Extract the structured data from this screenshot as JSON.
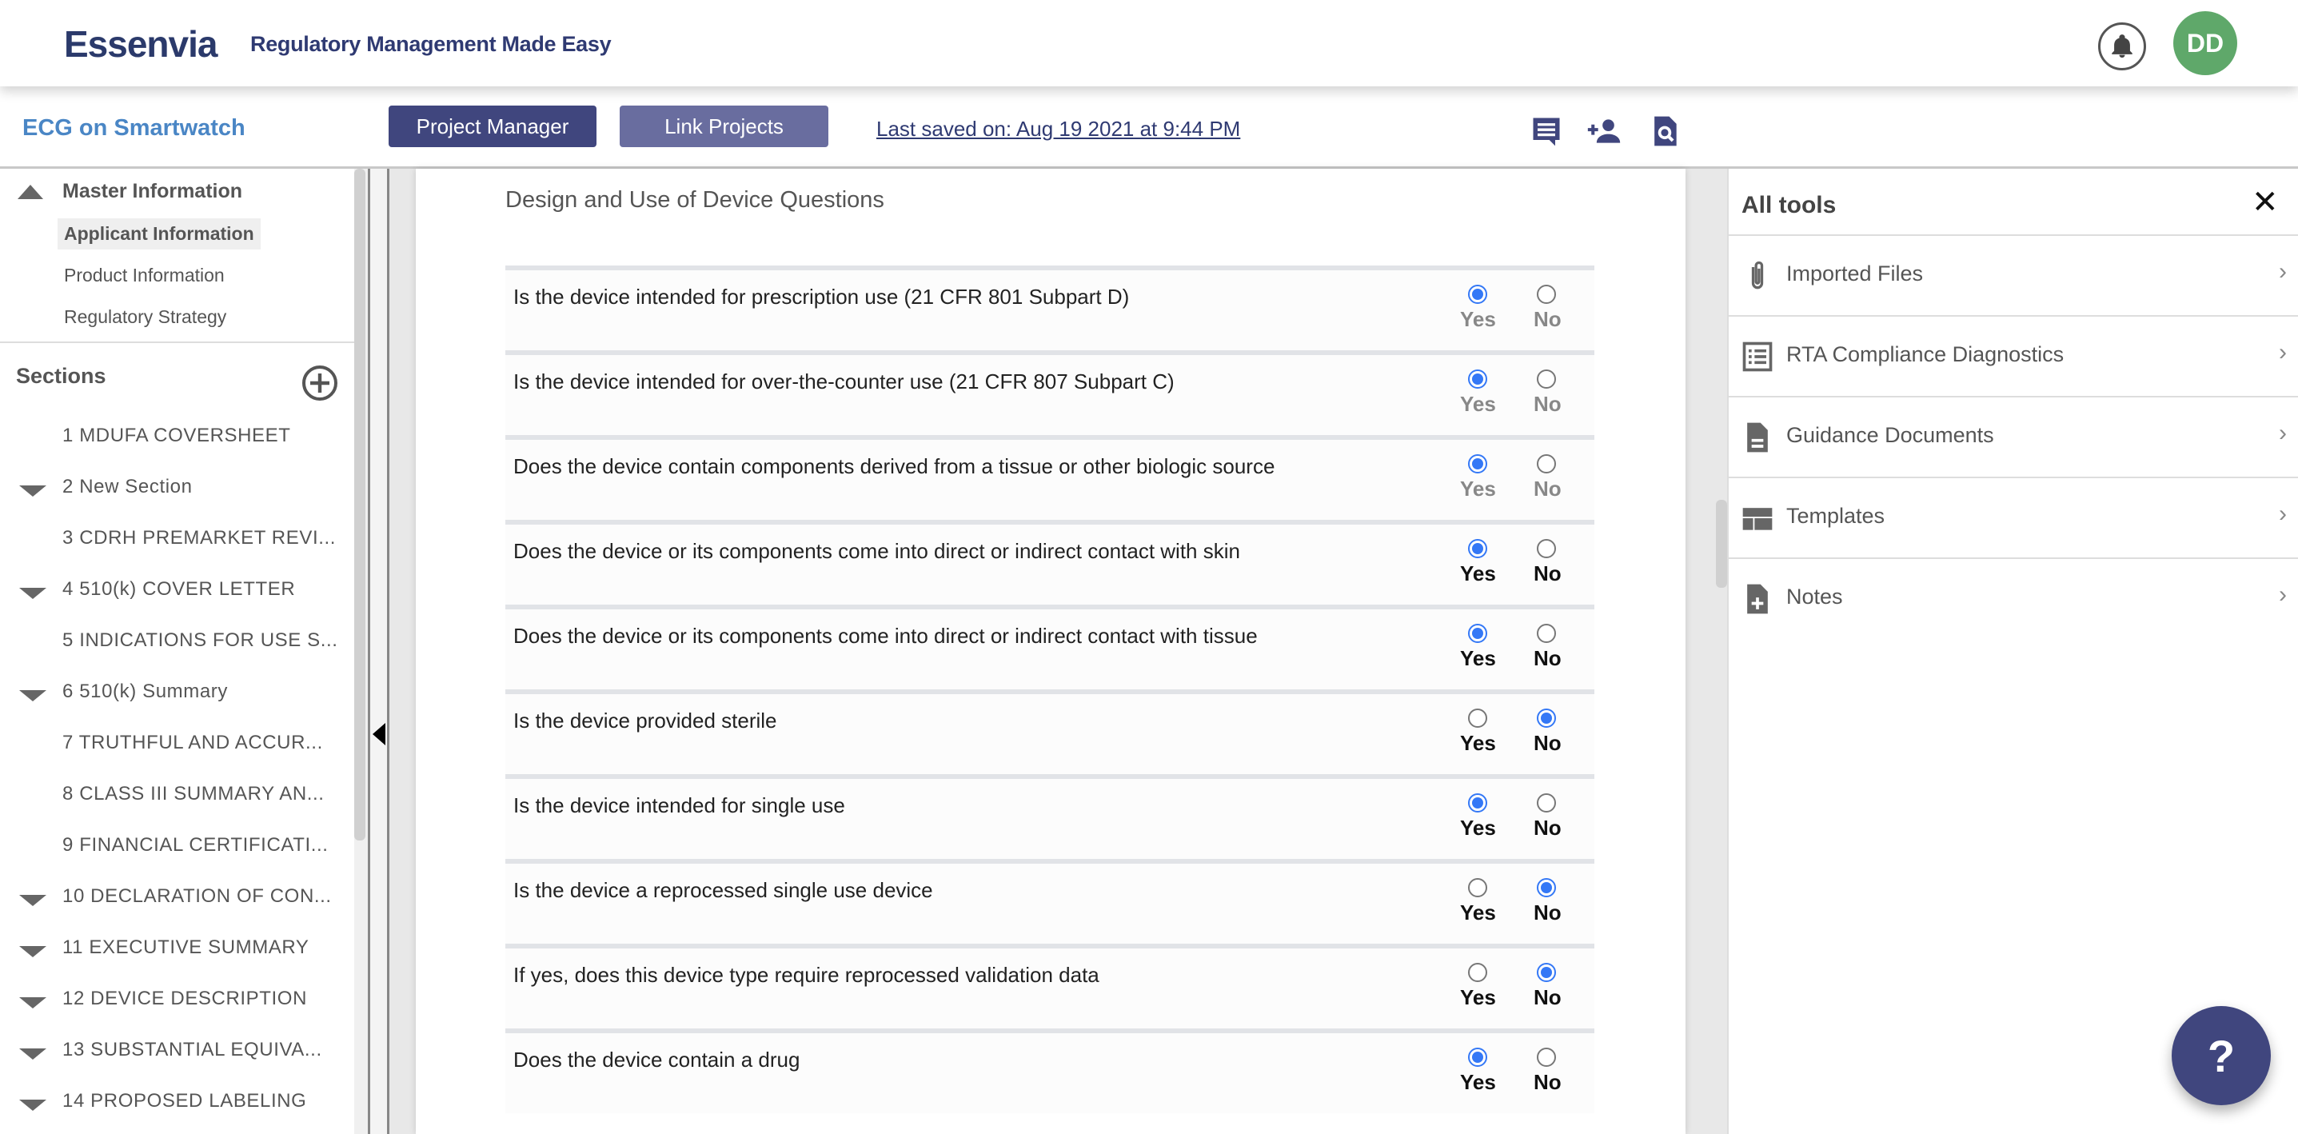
{
  "header": {
    "logo": "Essenvia",
    "tagline": "Regulatory Management Made Easy",
    "avatar_initials": "DD",
    "avatar_color": "#5fa86a"
  },
  "subbar": {
    "project_title": "ECG on Smartwatch",
    "project_manager_label": "Project Manager",
    "link_projects_label": "Link Projects",
    "last_saved": "Last saved on: Aug 19 2021 at 9:44 PM",
    "icons": [
      "comment-icon",
      "add-user-icon",
      "search-document-icon"
    ]
  },
  "sidebar": {
    "master_title": "Master Information",
    "master_items": [
      {
        "label": "Applicant Information",
        "active": true
      },
      {
        "label": "Product Information"
      },
      {
        "label": "Regulatory Strategy"
      }
    ],
    "sections_title": "Sections",
    "sections": [
      {
        "label": "1 MDUFA COVERSHEET",
        "expandable": false
      },
      {
        "label": "2 New Section",
        "expandable": true
      },
      {
        "label": "3 CDRH PREMARKET REVI...",
        "expandable": false
      },
      {
        "label": "4 510(k) COVER LETTER",
        "expandable": true
      },
      {
        "label": "5 INDICATIONS FOR USE S...",
        "expandable": false
      },
      {
        "label": "6 510(k) Summary",
        "expandable": true
      },
      {
        "label": "7 TRUTHFUL AND ACCUR...",
        "expandable": false
      },
      {
        "label": "8 CLASS III SUMMARY AN...",
        "expandable": false
      },
      {
        "label": "9 FINANCIAL CERTIFICATI...",
        "expandable": false
      },
      {
        "label": "10 DECLARATION OF CON...",
        "expandable": true
      },
      {
        "label": "11 EXECUTIVE SUMMARY",
        "expandable": true
      },
      {
        "label": "12 DEVICE DESCRIPTION",
        "expandable": true
      },
      {
        "label": "13 SUBSTANTIAL EQUIVA...",
        "expandable": true
      },
      {
        "label": "14 PROPOSED LABELING",
        "expandable": true
      }
    ]
  },
  "main": {
    "title": "Design and Use of Device Questions",
    "yes_label": "Yes",
    "no_label": "No",
    "questions": [
      {
        "text": "Is the device intended for prescription use (21 CFR 801 Subpart D)",
        "answer": "yes",
        "disabled": true
      },
      {
        "text": "Is the device intended for over-the-counter use (21 CFR 807 Subpart C)",
        "answer": "yes",
        "disabled": true
      },
      {
        "text": "Does the device contain components derived from a tissue or other biologic source",
        "answer": "yes",
        "disabled": true
      },
      {
        "text": "Does the device or its components come into direct or indirect contact with skin",
        "answer": "yes",
        "disabled": false
      },
      {
        "text": "Does the device or its components come into direct or indirect contact with tissue",
        "answer": "yes",
        "disabled": false
      },
      {
        "text": "Is the device provided sterile",
        "answer": "no",
        "disabled": false
      },
      {
        "text": "Is the device intended for single use",
        "answer": "yes",
        "disabled": false
      },
      {
        "text": "Is the device a reprocessed single use device",
        "answer": "no",
        "disabled": false
      },
      {
        "text": "If yes, does this device type require reprocessed validation data",
        "answer": "no",
        "disabled": false
      },
      {
        "text": "Does the device contain a drug",
        "answer": "yes",
        "disabled": false
      }
    ],
    "accent": "#3478f6"
  },
  "tools": {
    "title": "All tools",
    "items": [
      {
        "label": "Imported Files",
        "icon": "paperclip-icon"
      },
      {
        "label": "RTA Compliance Diagnostics",
        "icon": "checklist-icon"
      },
      {
        "label": "Guidance Documents",
        "icon": "document-icon"
      },
      {
        "label": "Templates",
        "icon": "template-icon"
      },
      {
        "label": "Notes",
        "icon": "note-add-icon"
      }
    ]
  },
  "help_label": "?"
}
